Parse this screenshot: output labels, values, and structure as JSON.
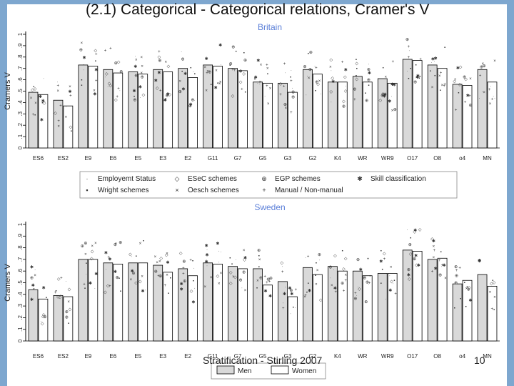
{
  "slide": {
    "title": "(2.1) Categorical - Categorical relations, Cramer's V",
    "footer": "Stratification - Stirling 2007",
    "page_number": "10"
  },
  "colors": {
    "frame": "#7ea7cf",
    "panel_title": "#5b7fd8",
    "men_fill": "#d9d9d9",
    "women_fill": "#ffffff",
    "bar_stroke": "#000000"
  },
  "legend": {
    "items": [
      {
        "marker": "·",
        "label": "Employemt Status"
      },
      {
        "marker": "◇",
        "label": "ESeC schemes"
      },
      {
        "marker": "⊕",
        "label": "EGP schemes"
      },
      {
        "marker": "✱",
        "label": "Skill classification"
      },
      {
        "marker": "▪",
        "label": "Wright schemes"
      },
      {
        "marker": "×",
        "label": "Oesch schemes"
      },
      {
        "marker": "+",
        "label": "Manual / Non-manual"
      }
    ],
    "bars": [
      {
        "label": "Men"
      },
      {
        "label": "Women"
      }
    ]
  },
  "chart_data": [
    {
      "type": "bar",
      "title": "Britain",
      "ylabel": "Cramers V",
      "xlabel": "",
      "ylim": [
        0,
        1
      ],
      "yticks": [
        "0",
        ".1",
        ".2",
        ".3",
        ".4",
        ".5",
        ".6",
        ".7",
        ".8",
        ".9",
        "1"
      ],
      "categories": [
        "ES6",
        "ES2",
        "E9",
        "E6",
        "E5",
        "E3",
        "E2",
        "G11",
        "G7",
        "G5",
        "G3",
        "G2",
        "K4",
        "WR",
        "WR9",
        "O17",
        "O8",
        "o4",
        "MN"
      ],
      "series": [
        {
          "name": "Men",
          "values": [
            0.49,
            0.42,
            0.73,
            0.69,
            0.67,
            0.69,
            0.7,
            0.73,
            0.7,
            0.58,
            0.57,
            0.69,
            0.58,
            0.63,
            0.61,
            0.78,
            0.73,
            0.56,
            0.69
          ]
        },
        {
          "name": "Women",
          "values": [
            0.47,
            0.37,
            0.72,
            0.66,
            0.65,
            0.67,
            0.62,
            0.72,
            0.68,
            0.57,
            0.49,
            0.65,
            0.58,
            0.58,
            0.57,
            0.77,
            0.7,
            0.55,
            0.58
          ]
        }
      ]
    },
    {
      "type": "bar",
      "title": "Sweden",
      "ylabel": "Cramers V",
      "xlabel": "",
      "ylim": [
        0,
        1
      ],
      "yticks": [
        "0",
        ".1",
        ".2",
        ".3",
        ".4",
        ".5",
        ".6",
        ".7",
        ".8",
        ".9",
        "1"
      ],
      "categories": [
        "ES6",
        "ES2",
        "E9",
        "E6",
        "E5",
        "E3",
        "E2",
        "G11",
        "G7",
        "G5",
        "G3",
        "G2",
        "K4",
        "WR",
        "WR9",
        "O17",
        "O8",
        "o4",
        "MN"
      ],
      "series": [
        {
          "name": "Men",
          "values": [
            0.44,
            0.39,
            0.7,
            0.67,
            0.67,
            0.65,
            0.62,
            0.67,
            0.64,
            0.62,
            0.51,
            0.63,
            0.64,
            0.6,
            0.58,
            0.78,
            0.7,
            0.49,
            0.57
          ]
        },
        {
          "name": "Women",
          "values": [
            0.36,
            0.38,
            0.7,
            0.66,
            0.67,
            0.59,
            0.56,
            0.66,
            0.62,
            0.48,
            0.38,
            0.57,
            0.6,
            0.56,
            0.58,
            0.77,
            0.71,
            0.52,
            0.47
          ]
        }
      ]
    }
  ]
}
